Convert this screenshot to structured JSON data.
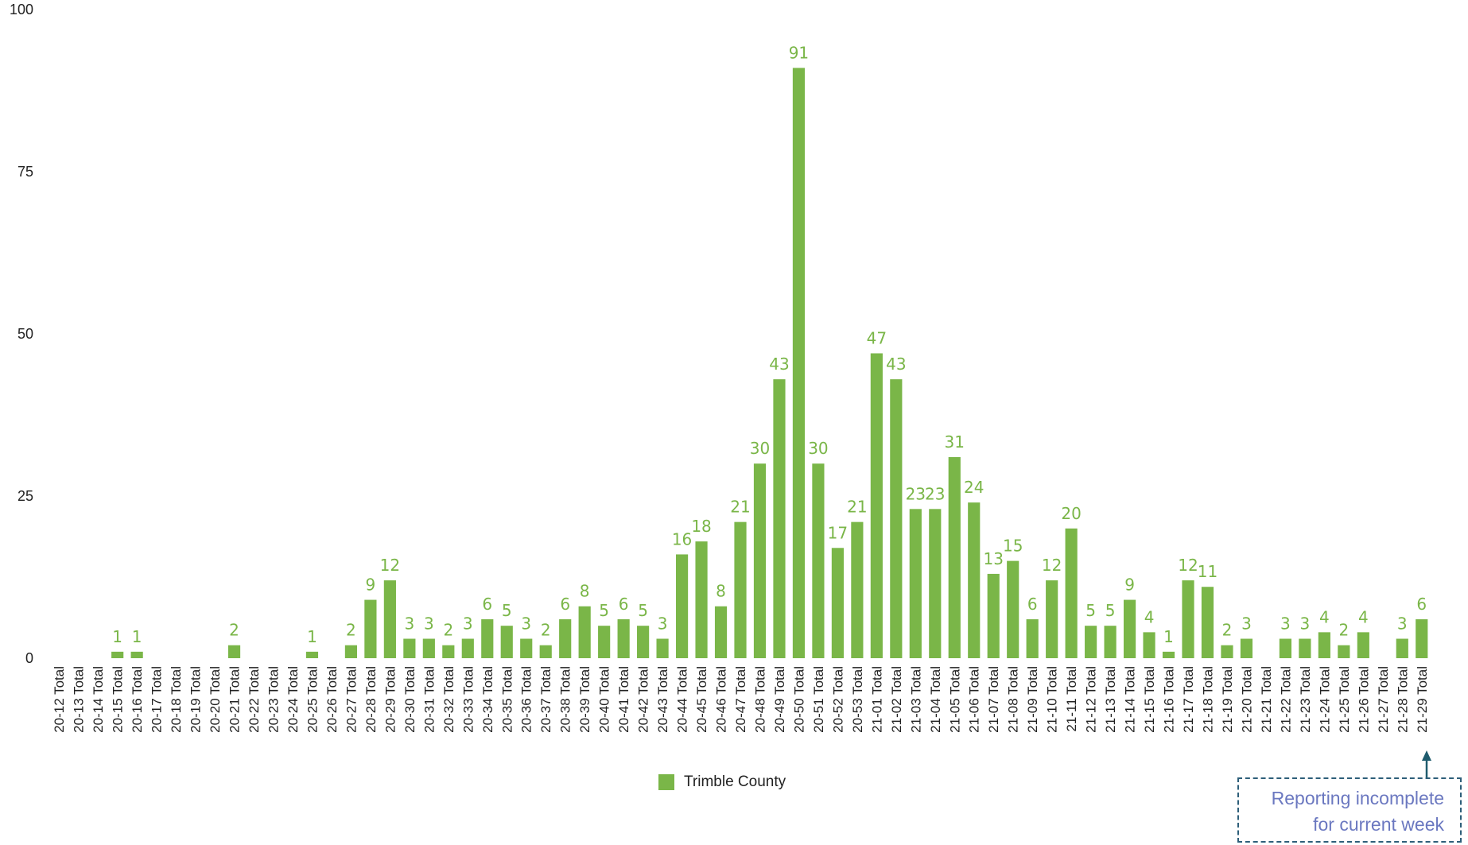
{
  "chart_data": {
    "type": "bar",
    "title": "",
    "xlabel": "",
    "ylabel": "",
    "ylim": [
      0,
      100
    ],
    "yticks": [
      0,
      25,
      50,
      75,
      100
    ],
    "grid": false,
    "legend_position": "bottom",
    "color": "#7ab648",
    "categories": [
      "20-12 Total",
      "20-13 Total",
      "20-14 Total",
      "20-15 Total",
      "20-16 Total",
      "20-17 Total",
      "20-18 Total",
      "20-19 Total",
      "20-20 Total",
      "20-21 Total",
      "20-22 Total",
      "20-23 Total",
      "20-24 Total",
      "20-25 Total",
      "20-26 Total",
      "20-27 Total",
      "20-28 Total",
      "20-29 Total",
      "20-30 Total",
      "20-31 Total",
      "20-32 Total",
      "20-33 Total",
      "20-34 Total",
      "20-35 Total",
      "20-36 Total",
      "20-37 Total",
      "20-38 Total",
      "20-39 Total",
      "20-40 Total",
      "20-41 Total",
      "20-42 Total",
      "20-43 Total",
      "20-44 Total",
      "20-45 Total",
      "20-46 Total",
      "20-47 Total",
      "20-48 Total",
      "20-49 Total",
      "20-50 Total",
      "20-51 Total",
      "20-52 Total",
      "20-53 Total",
      "21-01 Total",
      "21-02 Total",
      "21-03 Total",
      "21-04 Total",
      "21-05 Total",
      "21-06 Total",
      "21-07 Total",
      "21-08 Total",
      "21-09 Total",
      "21-10 Total",
      "21-11 Total",
      "21-12 Total",
      "21-13 Total",
      "21-14 Total",
      "21-15 Total",
      "21-16 Total",
      "21-17 Total",
      "21-18 Total",
      "21-19 Total",
      "21-20 Total",
      "21-21 Total",
      "21-22 Total",
      "21-23 Total",
      "21-24 Total",
      "21-25 Total",
      "21-26 Total",
      "21-27 Total",
      "21-28 Total",
      "21-29 Total"
    ],
    "series": [
      {
        "name": "Trimble County",
        "values": [
          null,
          null,
          null,
          1,
          1,
          null,
          null,
          null,
          null,
          2,
          null,
          null,
          null,
          1,
          null,
          2,
          9,
          12,
          3,
          3,
          2,
          3,
          6,
          5,
          3,
          2,
          6,
          8,
          5,
          6,
          5,
          3,
          16,
          18,
          8,
          21,
          30,
          43,
          91,
          30,
          17,
          21,
          47,
          43,
          23,
          23,
          31,
          24,
          13,
          15,
          6,
          12,
          20,
          5,
          5,
          9,
          4,
          1,
          12,
          11,
          2,
          3,
          null,
          3,
          3,
          4,
          2,
          4,
          null,
          3,
          6
        ]
      }
    ]
  },
  "legend": {
    "label": "Trimble County"
  },
  "annotation": {
    "line1": "Reporting incomplete",
    "line2": "for current week"
  },
  "colors": {
    "bar": "#7ab648",
    "label": "#7ab648",
    "arrow": "#1f5c6e",
    "note_border": "#2e5f7a",
    "note_text": "#6b78c0"
  }
}
